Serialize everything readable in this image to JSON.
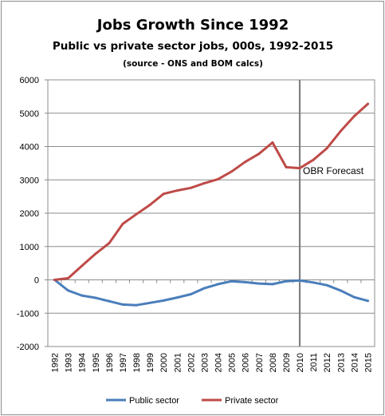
{
  "chart_data": {
    "type": "line",
    "title": "Jobs Growth Since 1992",
    "subtitle": "Public vs private sector jobs,  000s, 1992-2015",
    "source_note": "(source  -  ONS and BOM calcs)",
    "categories": [
      "1992",
      "1993",
      "1994",
      "1995",
      "1996",
      "1997",
      "1998",
      "1999",
      "2000",
      "2001",
      "2002",
      "2003",
      "2004",
      "2005",
      "2006",
      "2007",
      "2008",
      "2009",
      "2010",
      "2011",
      "2012",
      "2013",
      "2014",
      "2015"
    ],
    "series": [
      {
        "name": "Public sector",
        "color": "#4a7ebb",
        "values": [
          0,
          -320,
          -470,
          -540,
          -640,
          -740,
          -760,
          -690,
          -620,
          -530,
          -430,
          -250,
          -130,
          -40,
          -70,
          -110,
          -130,
          -40,
          -20,
          -80,
          -160,
          -320,
          -520,
          -630
        ]
      },
      {
        "name": "Private sector",
        "color": "#be4b48",
        "values": [
          0,
          50,
          420,
          780,
          1100,
          1680,
          1970,
          2250,
          2580,
          2680,
          2760,
          2900,
          3020,
          3250,
          3540,
          3780,
          4120,
          3380,
          3350,
          3600,
          3950,
          4460,
          4910,
          5280
        ]
      }
    ],
    "ylim": [
      -2000,
      6000
    ],
    "yticks": [
      "6000",
      "5000",
      "4000",
      "3000",
      "2000",
      "1000",
      "0",
      "-1000",
      "-2000"
    ],
    "ytick_values": [
      6000,
      5000,
      4000,
      3000,
      2000,
      1000,
      0,
      -1000,
      -2000
    ],
    "grid": true,
    "legend": "bottom",
    "annotation": {
      "text": "OBR Forecast",
      "at_category": "2010"
    }
  }
}
